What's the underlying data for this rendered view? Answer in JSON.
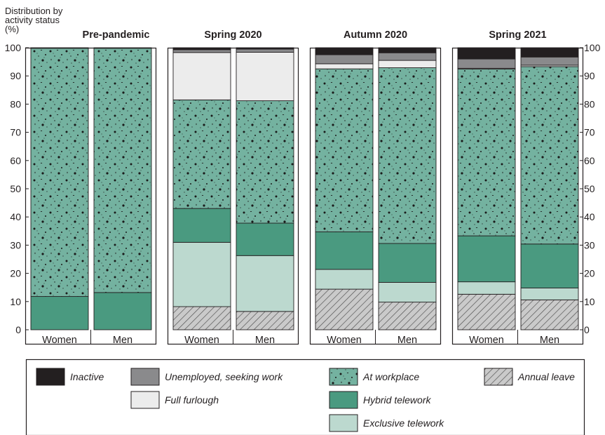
{
  "chart_data": {
    "type": "bar",
    "stacked": true,
    "ylabel": "Distribution by activity status (%)",
    "ylabel_lines": [
      "Distribution by",
      "activity status",
      "(%)"
    ],
    "ylim": [
      0,
      100
    ],
    "yticks": [
      0,
      10,
      20,
      30,
      40,
      50,
      60,
      70,
      80,
      90,
      100
    ],
    "grid": false,
    "legend_position": "bottom",
    "categories": [
      "Women",
      "Men"
    ],
    "series_order": [
      "Annual leave",
      "Exclusive telework",
      "Hybrid telework",
      "At workplace",
      "Full furlough",
      "Unemployed, seeking work",
      "Inactive"
    ],
    "panels": [
      {
        "title": "Pre-pandemic",
        "bars": [
          {
            "category": "Women",
            "values": {
              "Annual leave": 0,
              "Exclusive telework": 0,
              "Hybrid telework": 11.8,
              "At workplace": 88.0,
              "Full furlough": 0,
              "Unemployed, seeking work": 0,
              "Inactive": 0.2
            }
          },
          {
            "category": "Men",
            "values": {
              "Annual leave": 0,
              "Exclusive telework": 0,
              "Hybrid telework": 13.2,
              "At workplace": 86.6,
              "Full furlough": 0,
              "Unemployed, seeking work": 0,
              "Inactive": 0.2
            }
          }
        ]
      },
      {
        "title": "Spring 2020",
        "bars": [
          {
            "category": "Women",
            "values": {
              "Annual leave": 8.2,
              "Exclusive telework": 22.8,
              "Hybrid telework": 12.0,
              "At workplace": 38.5,
              "Full furlough": 16.8,
              "Unemployed, seeking work": 1.0,
              "Inactive": 0.7
            }
          },
          {
            "category": "Men",
            "values": {
              "Annual leave": 6.5,
              "Exclusive telework": 19.8,
              "Hybrid telework": 11.5,
              "At workplace": 43.4,
              "Full furlough": 17.2,
              "Unemployed, seeking work": 1.1,
              "Inactive": 0.5
            }
          }
        ]
      },
      {
        "title": "Autumn 2020",
        "bars": [
          {
            "category": "Women",
            "values": {
              "Annual leave": 14.4,
              "Exclusive telework": 7.0,
              "Hybrid telework": 13.3,
              "At workplace": 57.8,
              "Full furlough": 1.8,
              "Unemployed, seeking work": 3.2,
              "Inactive": 2.5
            }
          },
          {
            "category": "Men",
            "values": {
              "Annual leave": 9.8,
              "Exclusive telework": 7.0,
              "Hybrid telework": 13.8,
              "At workplace": 62.3,
              "Full furlough": 2.6,
              "Unemployed, seeking work": 2.7,
              "Inactive": 1.8
            }
          }
        ]
      },
      {
        "title": "Spring 2021",
        "bars": [
          {
            "category": "Women",
            "values": {
              "Annual leave": 12.6,
              "Exclusive telework": 4.4,
              "Hybrid telework": 16.3,
              "At workplace": 59.1,
              "Full furlough": 0.3,
              "Unemployed, seeking work": 3.3,
              "Inactive": 4.0
            }
          },
          {
            "category": "Men",
            "values": {
              "Annual leave": 10.6,
              "Exclusive telework": 4.2,
              "Hybrid telework": 15.6,
              "At workplace": 62.9,
              "Full furlough": 0.5,
              "Unemployed, seeking work": 2.9,
              "Inactive": 3.3
            }
          }
        ]
      }
    ],
    "legend": [
      {
        "label": "Inactive",
        "pattern": "solid",
        "color": "#231f20"
      },
      {
        "label": "Unemployed, seeking work",
        "pattern": "solid",
        "color": "#8a8a8c"
      },
      {
        "label": "At workplace",
        "pattern": "dots",
        "color": "#74b2a0"
      },
      {
        "label": "Annual leave",
        "pattern": "hatch",
        "color": "#cacaca"
      },
      {
        "label": "Full furlough",
        "pattern": "solid",
        "color": "#ececec"
      },
      {
        "label": "Hybrid telework",
        "pattern": "solid",
        "color": "#4a9a80"
      },
      {
        "label": "Exclusive telework",
        "pattern": "solid",
        "color": "#bcd9cf"
      }
    ]
  }
}
